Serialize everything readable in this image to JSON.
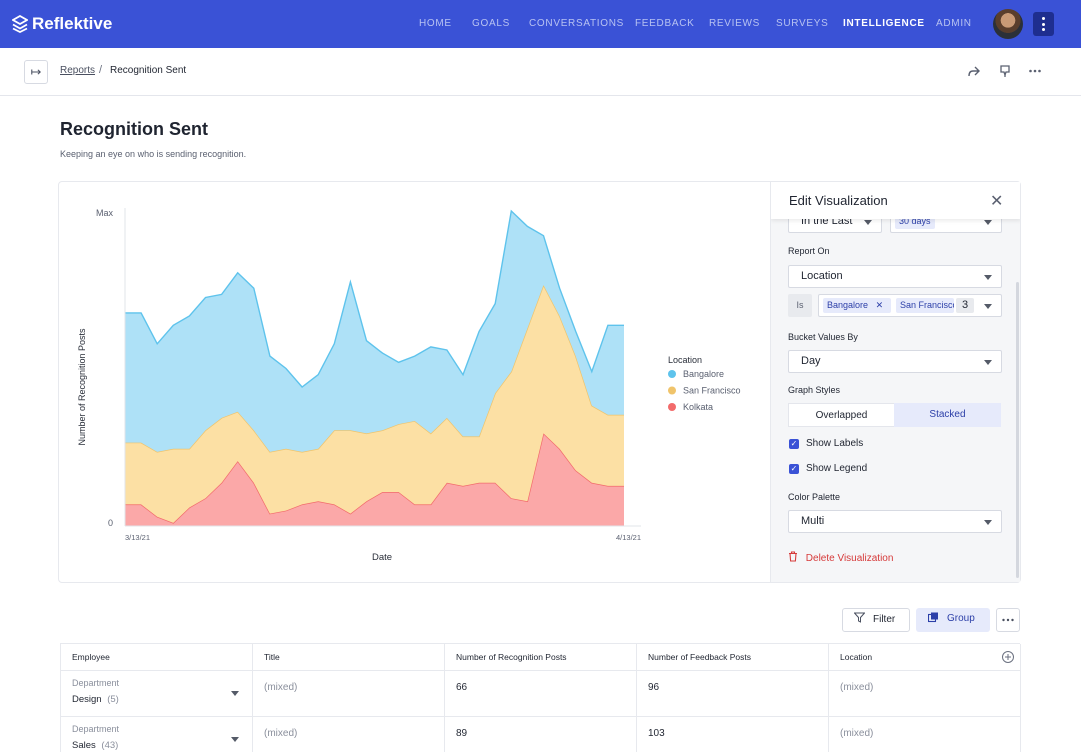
{
  "app": {
    "name": "Reflektive",
    "nav": [
      {
        "label": "HOME",
        "active": false
      },
      {
        "label": "GOALS",
        "active": false
      },
      {
        "label": "CONVERSATIONS",
        "active": false
      },
      {
        "label": "FEEDBACK",
        "active": false
      },
      {
        "label": "REVIEWS",
        "active": false
      },
      {
        "label": "SURVEYS",
        "active": false
      },
      {
        "label": "INTELLIGENCE",
        "active": true
      },
      {
        "label": "ADMIN",
        "active": false
      }
    ]
  },
  "breadcrumb": {
    "parent": "Reports",
    "current": "Recognition Sent"
  },
  "page": {
    "title": "Recognition Sent",
    "subtitle": "Keeping an eye on who is sending recognition."
  },
  "chart_data": {
    "type": "area",
    "stacked": true,
    "ylabel": "Number of Recognition Posts",
    "xlabel": "Date",
    "y_tick_labels": [
      "Max",
      "0"
    ],
    "x_tick_labels": [
      "3/13/21",
      "4/13/21"
    ],
    "legend_title": "Location",
    "legend_position": "right",
    "x_count": 32,
    "series": [
      {
        "name": "Kolkata",
        "color": "#f26b6b",
        "fill": "#fba8a8",
        "values": [
          7,
          7,
          3,
          1,
          6,
          9,
          14,
          21,
          14,
          4,
          5,
          7,
          8,
          7,
          4,
          8,
          11,
          11,
          7,
          7,
          14,
          13,
          14,
          14,
          9,
          8,
          30,
          25,
          18,
          14,
          13,
          13
        ]
      },
      {
        "name": "San Francisco",
        "color": "#f0c46b",
        "fill": "#fce0a4",
        "values": [
          20,
          20,
          21,
          24,
          19,
          22,
          21,
          16,
          17,
          20,
          20,
          17,
          17,
          24,
          27,
          22,
          20,
          22,
          27,
          23,
          21,
          16,
          15,
          29,
          41,
          56,
          48,
          43,
          37,
          25,
          23,
          23
        ]
      },
      {
        "name": "Bangalore",
        "color": "#5ec3ec",
        "fill": "#aee1f7",
        "values": [
          42,
          42,
          35,
          40,
          43,
          43,
          40,
          45,
          46,
          31,
          26,
          21,
          24,
          28,
          48,
          30,
          25,
          20,
          21,
          28,
          22,
          20,
          34,
          29,
          52,
          33,
          16,
          9,
          8,
          11,
          29,
          29
        ]
      }
    ]
  },
  "edit_panel": {
    "title": "Edit Visualization",
    "range_operator": "In the Last",
    "range_value": "30 days",
    "report_on_label": "Report On",
    "report_on_value": "Location",
    "is_label": "Is",
    "chips": [
      "Bangalore",
      "San Francisco"
    ],
    "chip_more_count": "3",
    "bucket_label": "Bucket Values By",
    "bucket_value": "Day",
    "graph_styles_label": "Graph Styles",
    "style_overlapped": "Overlapped",
    "style_stacked": "Stacked",
    "show_labels": "Show Labels",
    "show_legend": "Show Legend",
    "palette_label": "Color Palette",
    "palette_value": "Multi",
    "delete_label": "Delete Visualization"
  },
  "table_toolbar": {
    "filter": "Filter",
    "group": "Group"
  },
  "table": {
    "columns": [
      "Employee",
      "Title",
      "Number of Recognition Posts",
      "Number of Feedback Posts",
      "Location"
    ],
    "rows": [
      {
        "group_label": "Department",
        "name": "Design",
        "count": "(5)",
        "title": "(mixed)",
        "recognition": "66",
        "feedback": "96",
        "location": "(mixed)"
      },
      {
        "group_label": "Department",
        "name": "Sales",
        "count": "(43)",
        "title": "(mixed)",
        "recognition": "89",
        "feedback": "103",
        "location": "(mixed)"
      }
    ]
  },
  "colors": {
    "brand": "#3a52d6",
    "danger": "#d63a3a",
    "selected_bg": "#e6eafb"
  }
}
